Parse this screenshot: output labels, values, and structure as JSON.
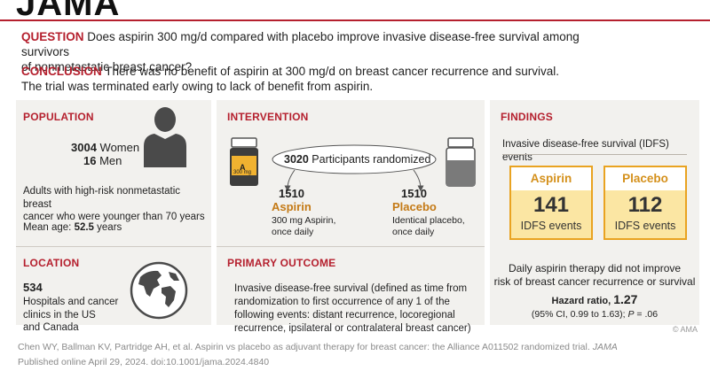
{
  "journal": "JAMA",
  "question": {
    "label": "QUESTION",
    "line1": "Does aspirin 300 mg/d compared with placebo improve invasive disease-free survival among survivors",
    "line2": "of nonmetastatic breast cancer?"
  },
  "conclusion": {
    "label": "CONCLUSION",
    "line1": "There was no benefit of aspirin at 300 mg/d on breast cancer recurrence and survival.",
    "line2": "The trial was terminated early owing to lack of benefit from aspirin."
  },
  "population": {
    "heading": "POPULATION",
    "women_count": "3004",
    "women_label": "Women",
    "men_count": "16",
    "men_label": "Men",
    "desc_line1": "Adults with high-risk nonmetastatic breast",
    "desc_line2": "cancer who were younger than 70 years",
    "age_label": "Mean age:",
    "age_value": "52.5",
    "age_unit": "years",
    "icon": "person-icon"
  },
  "location": {
    "heading": "LOCATION",
    "count": "534",
    "line1": "Hospitals and cancer",
    "line2": "clinics in the US",
    "line3": "and Canada",
    "icon": "globe-icon"
  },
  "intervention": {
    "heading": "INTERVENTION",
    "randomized_count": "3020",
    "randomized_label": "Participants randomized",
    "bottle_letter": "A",
    "bottle_dose": "300 mg",
    "aspirin": {
      "count": "1510",
      "name": "Aspirin",
      "line1": "300 mg Aspirin,",
      "line2": "once daily"
    },
    "placebo": {
      "count": "1510",
      "name": "Placebo",
      "line1": "Identical placebo,",
      "line2": "once daily"
    }
  },
  "primary_outcome": {
    "heading": "PRIMARY OUTCOME",
    "line1": "Invasive disease-free survival (defined as time from",
    "line2": "randomization to first occurrence of any 1 of the",
    "line3": "following events: distant recurrence, locoregional",
    "line4": "recurrence, ipsilateral or contralateral breast cancer)"
  },
  "findings": {
    "heading": "FINDINGS",
    "subtitle": "Invasive disease-free survival (IDFS) events",
    "aspirin": {
      "label": "Aspirin",
      "value": "141",
      "unit": "IDFS events"
    },
    "placebo": {
      "label": "Placebo",
      "value": "112",
      "unit": "IDFS events"
    },
    "summary_line1": "Daily aspirin therapy did not improve",
    "summary_line2": "risk of breast cancer recurrence or survival",
    "hr_label": "Hazard ratio,",
    "hr_value": "1.27",
    "ci_text": "(95% CI, 0.99 to 1.63);",
    "p_label": "P",
    "p_text": "= .06"
  },
  "copyright": "© AMA",
  "citation": {
    "line1_a": "Chen WY, Ballman KV, Partridge AH, et al. Aspirin vs placebo as adjuvant therapy for breast cancer: the Alliance A011502 randomized trial.",
    "line1_journal": "JAMA",
    "line2": "Published online April 29, 2024. doi:10.1001/jama.2024.4840"
  },
  "colors": {
    "accent_red": "#b5202e",
    "panel_bg": "#f2f1ee",
    "finding_fill": "#fbe6a3",
    "finding_border": "#e9a321",
    "finding_label": "#d4901b",
    "trial_arm_color": "#c47a16"
  }
}
